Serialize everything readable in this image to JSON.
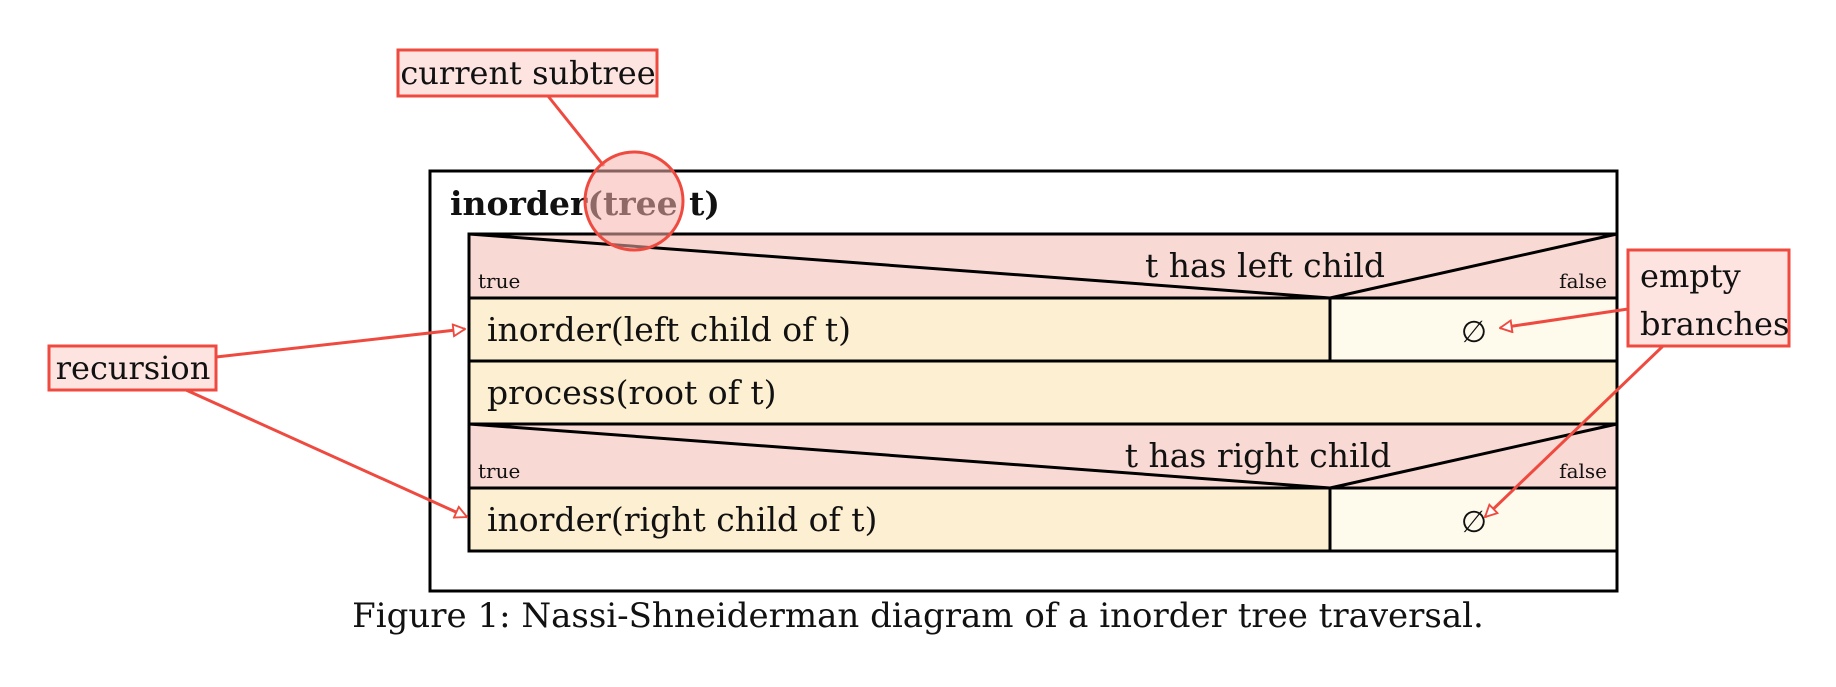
{
  "function_header": "inorder(tree t)",
  "function_name": "inorder(",
  "parameter": "tree t",
  "function_close": ")",
  "branch1": {
    "condition": "t has left child",
    "true_label": "true",
    "false_label": "false",
    "true_body": "inorder(left child of t)",
    "false_body": "∅"
  },
  "process": "process(root of t)",
  "branch2": {
    "condition": "t has right child",
    "true_label": "true",
    "false_label": "false",
    "true_body": "inorder(right child of t)",
    "false_body": "∅"
  },
  "annotations": {
    "current_subtree": "current subtree",
    "recursion": "recursion",
    "empty_line1": "empty",
    "empty_line2": "branches"
  },
  "caption": "Figure 1: Nassi-Shneiderman diagram of a inorder tree traversal.",
  "colors": {
    "condition_fill": "#f9d9d3",
    "true_body_fill": "#fdefd1",
    "false_body_fill": "#fefbec",
    "annotation_red": "#ef4a40",
    "annotation_fill": "#fde4e0",
    "stroke": "#000000"
  }
}
